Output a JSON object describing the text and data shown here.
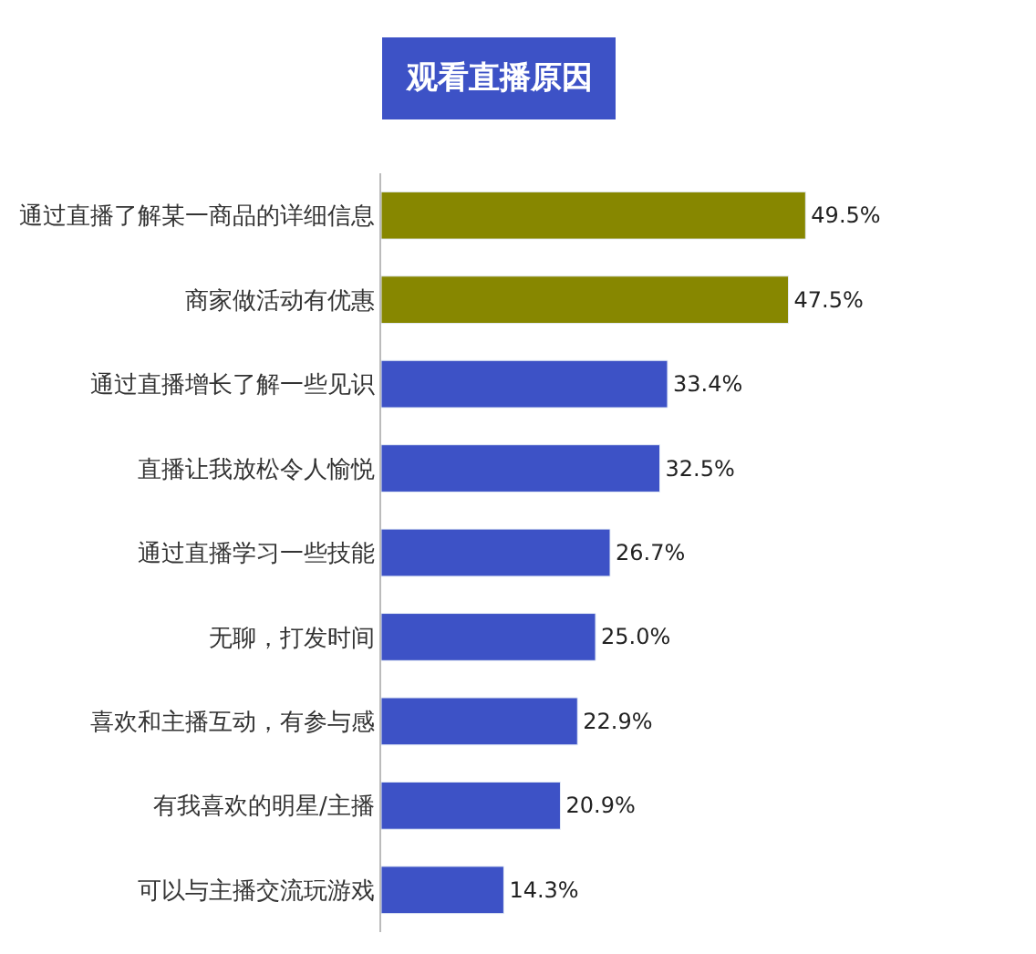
{
  "chart_data": {
    "type": "bar",
    "orientation": "horizontal",
    "title": "观看直播原因",
    "categories": [
      "通过直播了解某一商品的详细信息",
      "商家做活动有优惠",
      "通过直播增长了解一些见识",
      "直播让我放松令人愉悦",
      "通过直播学习一些技能",
      "无聊，打发时间",
      "喜欢和主播互动，有参与感",
      "有我喜欢的明星/主播",
      "可以与主播交流玩游戏"
    ],
    "values": [
      49.5,
      47.5,
      33.4,
      32.5,
      26.7,
      25.0,
      22.9,
      20.9,
      14.3
    ],
    "value_labels": [
      "49.5%",
      "47.5%",
      "33.4%",
      "32.5%",
      "26.7%",
      "25.0%",
      "22.9%",
      "20.9%",
      "14.3%"
    ],
    "colors": [
      "#878700",
      "#878700",
      "#3d52c6",
      "#3d52c6",
      "#3d52c6",
      "#3d52c6",
      "#3d52c6",
      "#3d52c6",
      "#3d52c6"
    ]
  }
}
